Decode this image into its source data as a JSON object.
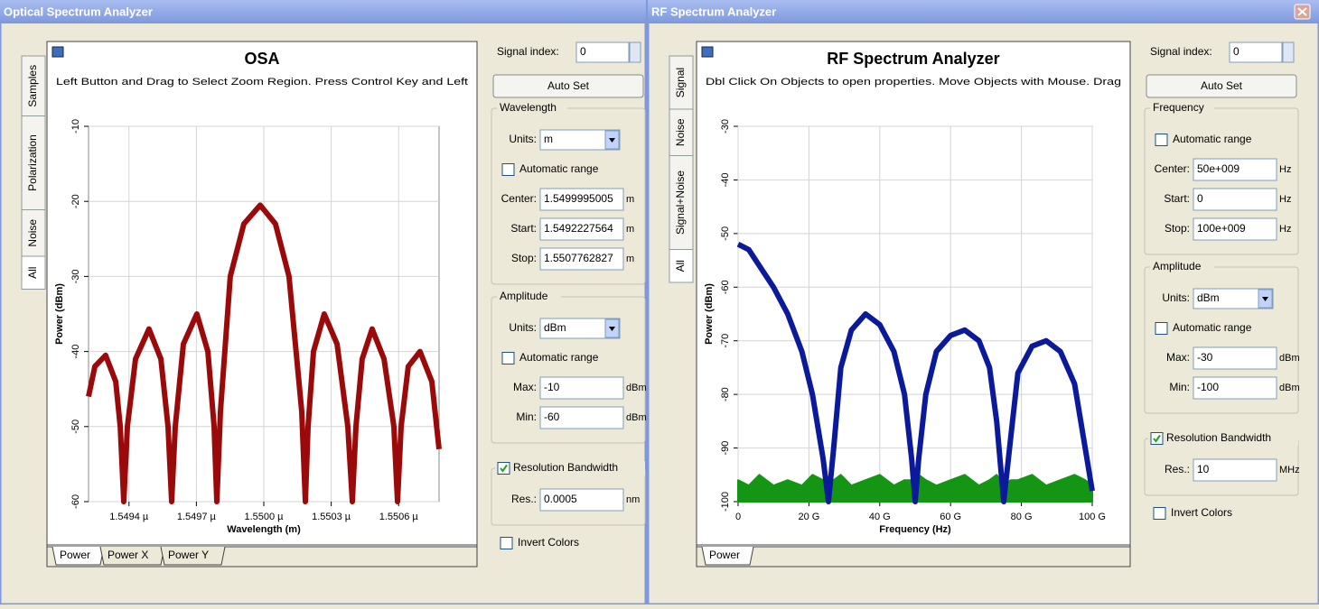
{
  "windows": [
    {
      "title": "Optical Spectrum Analyzer",
      "side_tabs": [
        "Samples",
        "Polarization",
        "Noise",
        "All"
      ],
      "bottom_tabs": [
        "Power",
        "Power X",
        "Power Y"
      ],
      "chart_data": {
        "type": "line",
        "title": "OSA",
        "subtitle": "Left Button and Drag to Select Zoom Region. Press Control Key and Left",
        "x_label": "Wavelength (m)",
        "y_label": "Power (dBm)",
        "x": [
          1.54922,
          1.549248,
          1.549296,
          1.549341,
          1.549361,
          1.549377,
          1.549393,
          1.549429,
          1.549489,
          1.549542,
          1.549574,
          1.54959,
          1.549606,
          1.549642,
          1.549702,
          1.549751,
          1.549779,
          1.549791,
          1.549807,
          1.549851,
          1.549911,
          1.549984,
          1.550052,
          1.550112,
          1.550169,
          1.550185,
          1.550197,
          1.550221,
          1.550269,
          1.550326,
          1.550374,
          1.550394,
          1.55041,
          1.550438,
          1.550482,
          1.550535,
          1.550579,
          1.550595,
          1.550611,
          1.550643,
          1.550695,
          1.550748,
          1.55078
        ],
        "series": [
          {
            "color": "#9b0a0a",
            "values": [
              -46,
              -42,
              -40.5,
              -44,
              -50,
              -60,
              -50,
              -41,
              -37,
              -41,
              -50,
              -60,
              -50,
              -39,
              -35,
              -40,
              -50,
              -60,
              -48,
              -30,
              -23,
              -20.5,
              -23,
              -30,
              -48,
              -60,
              -50,
              -40,
              -35,
              -39,
              -50,
              -60,
              -50,
              -41,
              -37,
              -41,
              -50,
              -60,
              -50,
              -42,
              -40,
              -44,
              -53
            ]
          }
        ],
        "xlim": [
          1.54922,
          1.55078
        ],
        "xticks": [
          {
            "value": 1.5494,
            "label": "1.5494 µ"
          },
          {
            "value": 1.5497,
            "label": "1.5497 µ"
          },
          {
            "value": 1.55,
            "label": "1.5500 µ"
          },
          {
            "value": 1.5503,
            "label": "1.5503 µ"
          },
          {
            "value": 1.5506,
            "label": "1.5506 µ"
          }
        ],
        "ylim": [
          -60,
          -10
        ],
        "yticks": [
          -10,
          -20,
          -30,
          -40,
          -50,
          -60
        ],
        "grid": true
      },
      "controls": {
        "signal_index_label": "Signal index:",
        "signal_index": "0",
        "auto_set": "Auto Set",
        "groups": [
          {
            "title": "Wavelength",
            "rows": [
              {
                "label": "Units:",
                "select": "m"
              },
              {
                "check": "Automatic range",
                "checked": false
              },
              {
                "label": "Center:",
                "value": "1.5499995005",
                "unit": "m"
              },
              {
                "label": "Start:",
                "value": "1.5492227564",
                "unit": "m"
              },
              {
                "label": "Stop:",
                "value": "1.5507762827",
                "unit": "m"
              }
            ]
          },
          {
            "title": "Amplitude",
            "rows": [
              {
                "label": "Units:",
                "select": "dBm"
              },
              {
                "check": "Automatic range",
                "checked": false
              },
              {
                "label": "Max:",
                "value": "-10",
                "unit": "dBm"
              },
              {
                "label": "Min:",
                "value": "-60",
                "unit": "dBm"
              }
            ]
          },
          {
            "title_check": "Resolution Bandwidth",
            "checked": true,
            "rows": [
              {
                "label": "Res.:",
                "value": "0.0005",
                "unit": "nm"
              }
            ]
          }
        ],
        "invert_colors": "Invert Colors",
        "invert_checked": false
      }
    },
    {
      "title": "RF Spectrum Analyzer",
      "side_tabs": [
        "Signal",
        "Noise",
        "Signal+Noise",
        "All"
      ],
      "bottom_tabs": [
        "Power"
      ],
      "chart_data": {
        "type": "line",
        "title": "RF Spectrum Analyzer",
        "subtitle": "Dbl Click On Objects to open properties. Move Objects with Mouse. Drag",
        "x_label": "Frequency (Hz)",
        "y_label": "Power (dBm)",
        "x": [
          0,
          3000000000.0,
          6000000000.0,
          10000000000.0,
          14000000000.0,
          18000000000.0,
          21000000000.0,
          24000000000.0,
          25500000000.0,
          27000000000.0,
          29000000000.0,
          32000000000.0,
          36000000000.0,
          40000000000.0,
          44000000000.0,
          47000000000.0,
          49000000000.0,
          50000000000.0,
          51000000000.0,
          53000000000.0,
          56000000000.0,
          60000000000.0,
          64000000000.0,
          68000000000.0,
          71000000000.0,
          73000000000.0,
          75000000000.0,
          77000000000.0,
          79000000000.0,
          83000000000.0,
          87000000000.0,
          91000000000.0,
          95000000000.0,
          98000000000.0,
          100000000000.0
        ],
        "series": [
          {
            "color": "#149614",
            "area": true,
            "values": [
              -96,
              -97,
              -95,
              -97,
              -96,
              -97,
              -95,
              -96,
              -97,
              -96,
              -95,
              -97,
              -96,
              -95,
              -97,
              -96,
              -96,
              -97,
              -95,
              -96,
              -97,
              -96,
              -95,
              -97,
              -96,
              -95,
              -97,
              -96,
              -96,
              -95,
              -97,
              -96,
              -95,
              -96,
              -97
            ]
          },
          {
            "color": "#0a1a9b",
            "values": [
              -52,
              -53,
              -56,
              -60,
              -65,
              -72,
              -80,
              -92,
              -100,
              -90,
              -75,
              -68,
              -65,
              -67,
              -72,
              -80,
              -92,
              -100,
              -92,
              -80,
              -72,
              -69,
              -68,
              -70,
              -75,
              -85,
              -100,
              -88,
              -76,
              -71,
              -70,
              -72,
              -78,
              -90,
              -98
            ]
          }
        ],
        "xlim": [
          0,
          100000000000.0
        ],
        "xticks": [
          0,
          {
            "value": 20000000000.0,
            "label": "20 G"
          },
          {
            "value": 40000000000.0,
            "label": "40 G"
          },
          {
            "value": 60000000000.0,
            "label": "60 G"
          },
          {
            "value": 80000000000.0,
            "label": "80 G"
          },
          {
            "value": 100000000000.0,
            "label": "100 G"
          }
        ],
        "ylim": [
          -100,
          -30
        ],
        "yticks": [
          -30,
          -40,
          -50,
          -60,
          -70,
          -80,
          -90,
          -100
        ],
        "grid": true
      },
      "controls": {
        "signal_index_label": "Signal index:",
        "signal_index": "0",
        "auto_set": "Auto Set",
        "groups": [
          {
            "title": "Frequency",
            "rows": [
              {
                "check": "Automatic range",
                "checked": false
              },
              {
                "label": "Center:",
                "value": "50e+009",
                "unit": "Hz"
              },
              {
                "label": "Start:",
                "value": "0",
                "unit": "Hz"
              },
              {
                "label": "Stop:",
                "value": "100e+009",
                "unit": "Hz"
              }
            ]
          },
          {
            "title": "Amplitude",
            "rows": [
              {
                "label": "Units:",
                "select": "dBm"
              },
              {
                "check": "Automatic range",
                "checked": false
              },
              {
                "label": "Max:",
                "value": "-30",
                "unit": "dBm"
              },
              {
                "label": "Min:",
                "value": "-100",
                "unit": "dBm"
              }
            ]
          },
          {
            "title_check": "Resolution Bandwidth",
            "checked": true,
            "rows": [
              {
                "label": "Res.:",
                "value": "10",
                "unit": "MHz"
              }
            ]
          }
        ],
        "invert_colors": "Invert Colors",
        "invert_checked": false
      }
    }
  ]
}
